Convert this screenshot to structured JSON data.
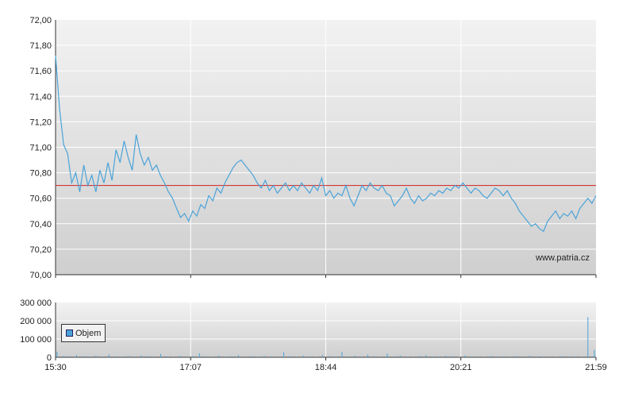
{
  "chart_data": [
    {
      "type": "line",
      "name_hint": "price",
      "x_ticks": [
        "15:30",
        "17:07",
        "18:44",
        "20:21",
        "21:59"
      ],
      "y_ticks": [
        "72,00",
        "71,80",
        "71,60",
        "71,40",
        "71,20",
        "71,00",
        "70,80",
        "70,60",
        "70,40",
        "70,20",
        "70,00"
      ],
      "ylim": [
        70.0,
        72.0
      ],
      "reference_line": 70.7,
      "series_color": "#4aa3d8",
      "reference_color": "#d02020",
      "watermark": "www.patria.cz",
      "series": [
        {
          "values": [
            71.72,
            71.3,
            71.02,
            70.95,
            70.72,
            70.8,
            70.65,
            70.86,
            70.7,
            70.78,
            70.65,
            70.82,
            70.72,
            70.88,
            70.74,
            70.98,
            70.88,
            71.05,
            70.92,
            70.82,
            71.1,
            70.95,
            70.86,
            70.92,
            70.82,
            70.86,
            70.78,
            70.72,
            70.65,
            70.6,
            70.52,
            70.45,
            70.48,
            70.42,
            70.5,
            70.46,
            70.55,
            70.52,
            70.62,
            70.58,
            70.68,
            70.64,
            70.72,
            70.78,
            70.84,
            70.88,
            70.9,
            70.86,
            70.82,
            70.78,
            70.72,
            70.68,
            70.74,
            70.66,
            70.7,
            70.64,
            70.68,
            70.72,
            70.66,
            70.7,
            70.66,
            70.72,
            70.68,
            70.64,
            70.7,
            70.66,
            70.76,
            70.62,
            70.66,
            70.6,
            70.64,
            70.62,
            70.7,
            70.6,
            70.54,
            70.62,
            70.7,
            70.66,
            70.72,
            70.68,
            70.66,
            70.7,
            70.64,
            70.62,
            70.54,
            70.58,
            70.62,
            70.68,
            70.6,
            70.56,
            70.62,
            70.58,
            70.6,
            70.64,
            70.62,
            70.66,
            70.64,
            70.68,
            70.66,
            70.7,
            70.68,
            70.72,
            70.68,
            70.64,
            70.68,
            70.66,
            70.62,
            70.6,
            70.64,
            70.68,
            70.66,
            70.62,
            70.66,
            70.6,
            70.56,
            70.5,
            70.46,
            70.42,
            70.38,
            70.4,
            70.36,
            70.34,
            70.42,
            70.46,
            70.5,
            70.44,
            70.48,
            70.46,
            70.5,
            70.44,
            70.52,
            70.56,
            70.6,
            70.56,
            70.62
          ]
        }
      ]
    },
    {
      "type": "bar",
      "name_hint": "volume",
      "x_ticks": [
        "15:30",
        "17:07",
        "18:44",
        "20:21",
        "21:59"
      ],
      "y_ticks": [
        "300 000",
        "200 000",
        "100 000",
        "0"
      ],
      "ylim": [
        0,
        300000
      ],
      "legend": [
        "Objem"
      ],
      "series_color": "#4aa3d8",
      "series": [
        {
          "values": [
            30000,
            8000,
            5000,
            12000,
            6000,
            4000,
            9000,
            3000,
            15000,
            5000,
            4000,
            7000,
            3000,
            10000,
            6000,
            4000,
            18000,
            5000,
            3000,
            8000,
            4000,
            6000,
            22000,
            5000,
            4000,
            9000,
            3000,
            5000,
            12000,
            4000,
            6000,
            3000,
            8000,
            5000,
            4000,
            28000,
            6000,
            4000,
            9000,
            5000,
            3000,
            12000,
            6000,
            4000,
            30000,
            5000,
            8000,
            4000,
            15000,
            6000,
            3000,
            20000,
            5000,
            9000,
            4000,
            3000,
            7000,
            12000,
            5000,
            4000,
            8000,
            6000,
            3000,
            9000,
            5000,
            4000,
            3000,
            7000,
            5000,
            4000,
            3000,
            6000,
            4000,
            8000,
            3000,
            5000,
            4000,
            3000,
            6000,
            5000,
            4000,
            3000,
            220000,
            40000
          ]
        }
      ]
    }
  ]
}
